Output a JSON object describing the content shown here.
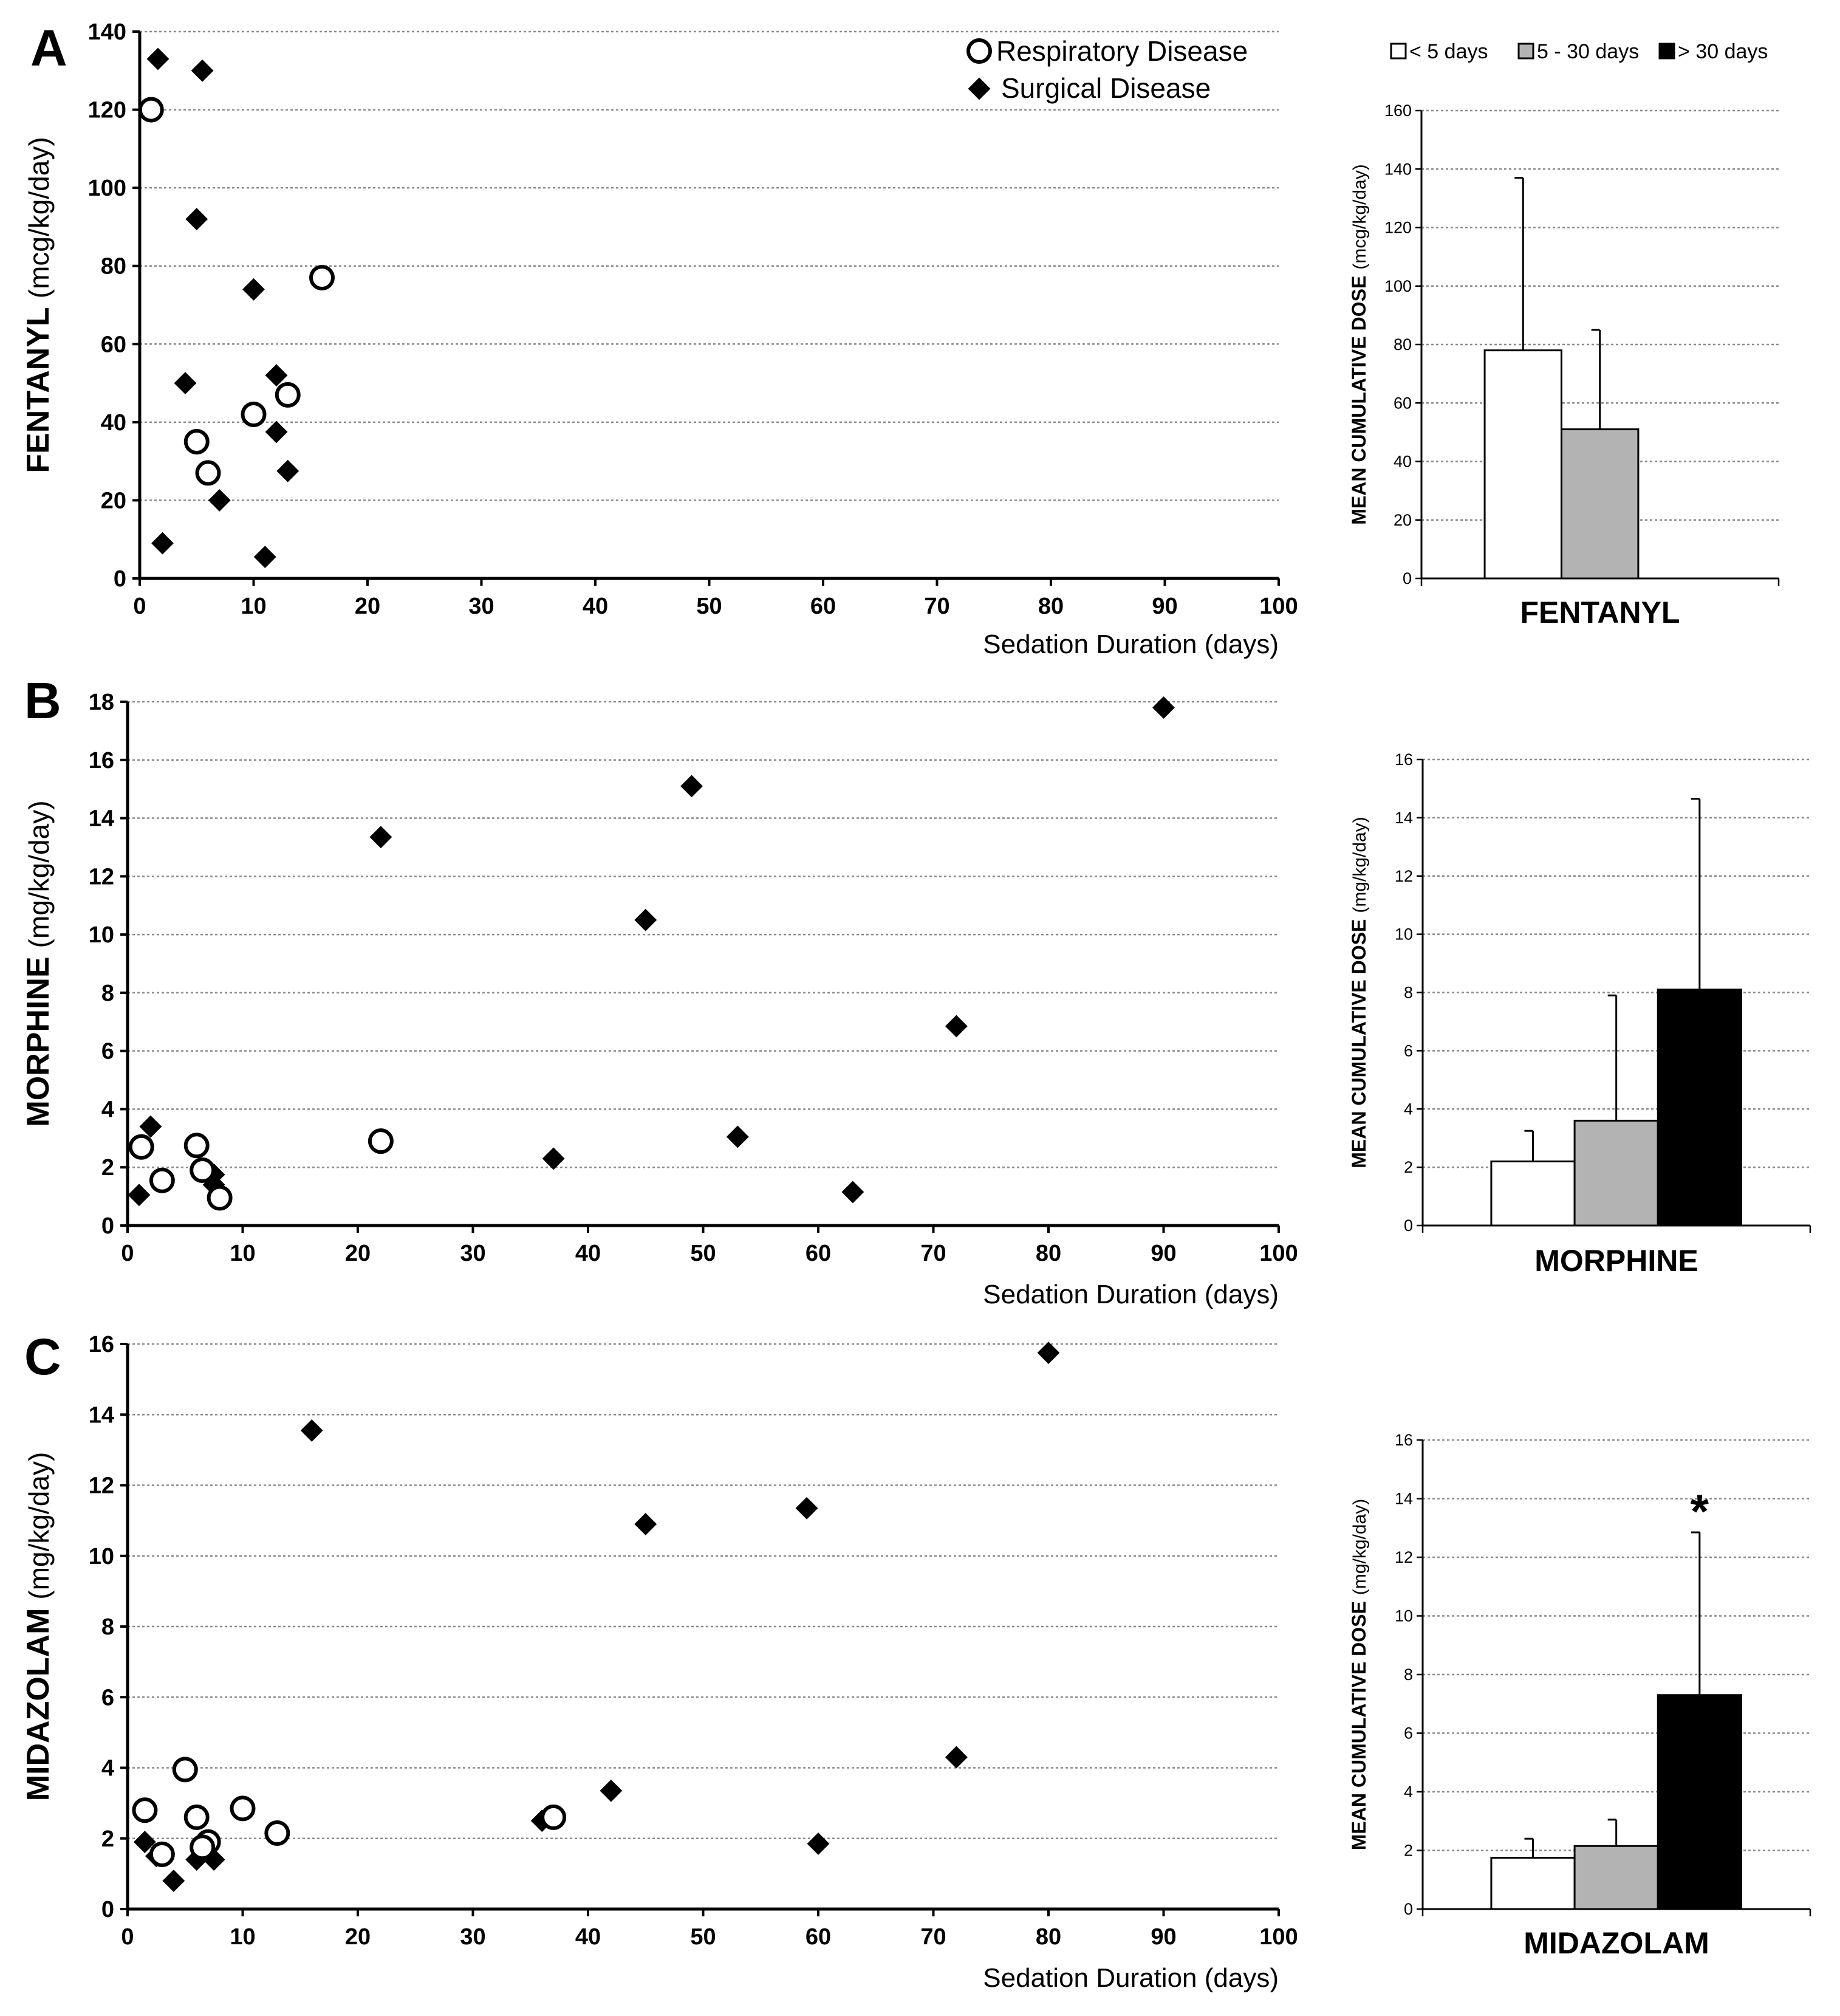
{
  "legend": {
    "respiratory": "Respiratory Disease",
    "surgical": "Surgical Disease"
  },
  "bar_legend": {
    "lt5": "< 5 days",
    "d5to30": "5 - 30 days",
    "gt30": "> 30 days"
  },
  "colors": {
    "lt5": "#ffffff",
    "d5to30": "#b3b3b3",
    "gt30": "#000000"
  },
  "chart_data": [
    {
      "type": "scatter",
      "panel": "A",
      "ylabel_bold": "FENTANYL",
      "ylabel_unit": "(mcg/kg/day)",
      "xlabel": "Sedation Duration (days)",
      "xlim": [
        0,
        100
      ],
      "ylim": [
        0,
        140
      ],
      "xticks": [
        0,
        10,
        20,
        30,
        40,
        50,
        60,
        70,
        80,
        90,
        100
      ],
      "yticks": [
        0,
        20,
        40,
        60,
        80,
        100,
        120,
        140
      ],
      "grid": true,
      "legend_position": "top-right",
      "series": [
        {
          "name": "Respiratory Disease",
          "marker": "open-circle",
          "points": [
            [
              1,
              120
            ],
            [
              16,
              77
            ],
            [
              13,
              47
            ],
            [
              10,
              42
            ],
            [
              5,
              35
            ],
            [
              6,
              27
            ]
          ]
        },
        {
          "name": "Surgical Disease",
          "marker": "diamond",
          "points": [
            [
              1.6,
              133
            ],
            [
              5.5,
              130
            ],
            [
              5,
              92
            ],
            [
              10,
              74
            ],
            [
              4,
              50
            ],
            [
              12,
              52
            ],
            [
              12,
              37.5
            ],
            [
              13,
              27.5
            ],
            [
              7,
              20
            ],
            [
              2,
              9
            ],
            [
              11,
              5.5
            ]
          ]
        }
      ]
    },
    {
      "type": "bar",
      "panel": "A",
      "title": "FENTANYL",
      "ylabel_bold": "MEAN CUMULATIVE DOSE",
      "ylabel_unit": "(mcg/kg/day)",
      "categories": [
        "< 5 days",
        "5 - 30 days",
        "> 30 days"
      ],
      "values": [
        78,
        51,
        null
      ],
      "errors": [
        137,
        85,
        null
      ],
      "ylim": [
        0,
        160
      ],
      "yticks": [
        0,
        20,
        40,
        60,
        80,
        100,
        120,
        140,
        160
      ],
      "annotation": ""
    },
    {
      "type": "scatter",
      "panel": "B",
      "ylabel_bold": "MORPHINE",
      "ylabel_unit": "(mg/kg/day)",
      "xlabel": "Sedation Duration (days)",
      "xlim": [
        0,
        100
      ],
      "ylim": [
        0,
        18
      ],
      "xticks": [
        0,
        10,
        20,
        30,
        40,
        50,
        60,
        70,
        80,
        90,
        100
      ],
      "yticks": [
        0,
        2,
        4,
        6,
        8,
        10,
        12,
        14,
        16,
        18
      ],
      "grid": true,
      "series": [
        {
          "name": "Respiratory Disease",
          "marker": "open-circle",
          "points": [
            [
              1.2,
              2.7
            ],
            [
              6,
              2.75
            ],
            [
              3,
              1.55
            ],
            [
              6.5,
              1.9
            ],
            [
              8,
              0.95
            ],
            [
              22,
              2.9
            ]
          ]
        },
        {
          "name": "Surgical Disease",
          "marker": "diamond",
          "points": [
            [
              90,
              17.8
            ],
            [
              49,
              15.1
            ],
            [
              22,
              13.35
            ],
            [
              45,
              10.5
            ],
            [
              72,
              6.85
            ],
            [
              53,
              3.05
            ],
            [
              37,
              2.3
            ],
            [
              63,
              1.15
            ],
            [
              2,
              3.4
            ],
            [
              1,
              1.05
            ],
            [
              7.5,
              1.75
            ],
            [
              7.5,
              1.4
            ]
          ]
        }
      ]
    },
    {
      "type": "bar",
      "panel": "B",
      "title": "MORPHINE",
      "ylabel_bold": "MEAN CUMULATIVE DOSE",
      "ylabel_unit": "(mg/kg/day)",
      "categories": [
        "< 5 days",
        "5 - 30 days",
        "> 30 days"
      ],
      "values": [
        2.2,
        3.6,
        8.1
      ],
      "errors": [
        3.25,
        7.9,
        14.65
      ],
      "ylim": [
        0,
        16
      ],
      "yticks": [
        0,
        2,
        4,
        6,
        8,
        10,
        12,
        14,
        16
      ],
      "annotation": ""
    },
    {
      "type": "scatter",
      "panel": "C",
      "ylabel_bold": "MIDAZOLAM",
      "ylabel_unit": "(mg/kg/day)",
      "xlabel": "Sedation Duration (days)",
      "xlim": [
        0,
        100
      ],
      "ylim": [
        0,
        16
      ],
      "xticks": [
        0,
        10,
        20,
        30,
        40,
        50,
        60,
        70,
        80,
        90,
        100
      ],
      "yticks": [
        0,
        2,
        4,
        6,
        8,
        10,
        12,
        14,
        16
      ],
      "grid": true,
      "series": [
        {
          "name": "Respiratory Disease",
          "marker": "open-circle",
          "points": [
            [
              1.5,
              2.8
            ],
            [
              5,
              3.95
            ],
            [
              6,
              2.6
            ],
            [
              10,
              2.85
            ],
            [
              13,
              2.15
            ],
            [
              7,
              1.9
            ],
            [
              6.5,
              1.75
            ],
            [
              3,
              1.55
            ],
            [
              37,
              2.6
            ]
          ]
        },
        {
          "name": "Surgical Disease",
          "marker": "diamond",
          "points": [
            [
              80,
              15.75
            ],
            [
              16,
              13.55
            ],
            [
              45,
              10.9
            ],
            [
              59,
              11.35
            ],
            [
              72,
              4.3
            ],
            [
              42,
              3.35
            ],
            [
              36,
              2.5
            ],
            [
              60,
              1.85
            ],
            [
              1.5,
              1.9
            ],
            [
              2.5,
              1.5
            ],
            [
              4,
              0.8
            ],
            [
              6,
              1.4
            ],
            [
              7.5,
              1.4
            ]
          ]
        }
      ]
    },
    {
      "type": "bar",
      "panel": "C",
      "title": "MIDAZOLAM",
      "ylabel_bold": "MEAN CUMULATIVE DOSE",
      "ylabel_unit": "(mg/kg/day)",
      "categories": [
        "< 5 days",
        "5 - 30 days",
        "> 30 days"
      ],
      "values": [
        1.75,
        2.15,
        7.3
      ],
      "errors": [
        2.4,
        3.05,
        12.85
      ],
      "ylim": [
        0,
        16
      ],
      "yticks": [
        0,
        2,
        4,
        6,
        8,
        10,
        12,
        14,
        16
      ],
      "annotation": "*"
    }
  ]
}
